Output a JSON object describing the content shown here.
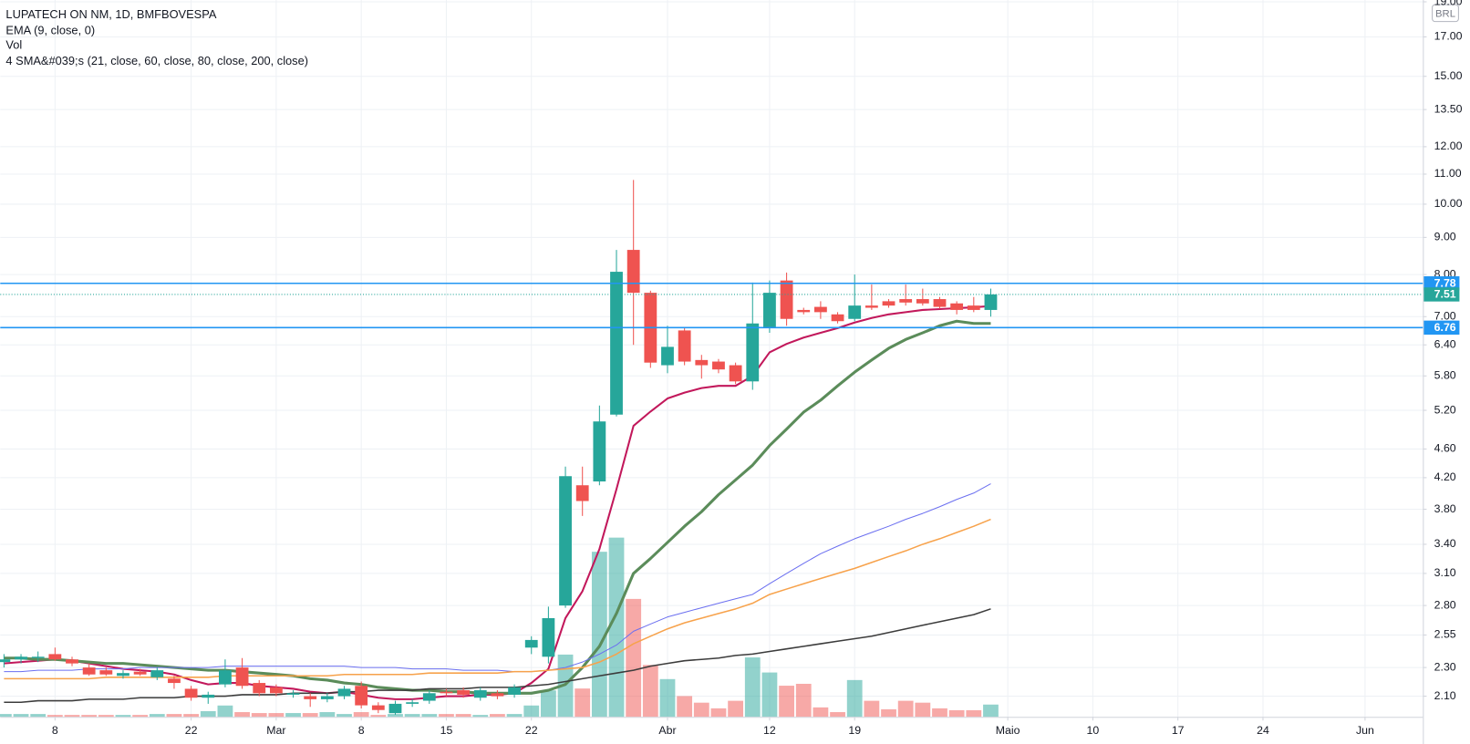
{
  "chart_data": {
    "type": "candlestick",
    "title": "LUPATECH ON NM, 1D, BMFBOVESPA",
    "indicators_legend": [
      "EMA (9, close, 0)",
      "Vol",
      "4 SMA&#039;s (21, close, 60, close, 80, close, 200, close)"
    ],
    "currency": "BRL",
    "log_scale": true,
    "grid": true,
    "up_color": "#26a69a",
    "down_color": "#ef5350",
    "ylim": [
      1.967,
      19.11
    ],
    "yticks": [
      {
        "value": 19,
        "label": "19.00"
      },
      {
        "value": 17,
        "label": "17.00"
      },
      {
        "value": 15,
        "label": "15.00"
      },
      {
        "value": 13.5,
        "label": "13.50"
      },
      {
        "value": 12,
        "label": "12.00"
      },
      {
        "value": 11,
        "label": "11.00"
      },
      {
        "value": 10,
        "label": "10.00"
      },
      {
        "value": 9,
        "label": "9.00"
      },
      {
        "value": 8,
        "label": "8.00"
      },
      {
        "value": 7,
        "label": "7.00"
      },
      {
        "value": 6.4,
        "label": "6.40"
      },
      {
        "value": 5.8,
        "label": "5.80"
      },
      {
        "value": 5.2,
        "label": "5.20"
      },
      {
        "value": 4.6,
        "label": "4.60"
      },
      {
        "value": 4.2,
        "label": "4.20"
      },
      {
        "value": 3.8,
        "label": "3.80"
      },
      {
        "value": 3.4,
        "label": "3.40"
      },
      {
        "value": 3.1,
        "label": "3.10"
      },
      {
        "value": 2.8,
        "label": "2.80"
      },
      {
        "value": 2.55,
        "label": "2.55"
      },
      {
        "value": 2.3,
        "label": "2.30"
      },
      {
        "value": 2.1,
        "label": "2.10"
      }
    ],
    "xlim": [
      -0.22,
      83.4
    ],
    "xticks": [
      {
        "value": 3,
        "label": "8"
      },
      {
        "value": 11,
        "label": "22"
      },
      {
        "value": 16,
        "label": "Mar"
      },
      {
        "value": 21,
        "label": "8"
      },
      {
        "value": 26,
        "label": "15"
      },
      {
        "value": 31,
        "label": "22"
      },
      {
        "value": 39,
        "label": "Abr"
      },
      {
        "value": 45,
        "label": "12"
      },
      {
        "value": 50,
        "label": "19"
      },
      {
        "value": 59,
        "label": "Maio"
      },
      {
        "value": 64,
        "label": "10"
      },
      {
        "value": 69,
        "label": "17"
      },
      {
        "value": 74,
        "label": "24"
      },
      {
        "value": 80,
        "label": "Jun"
      }
    ],
    "open": [
      2.34,
      2.36,
      2.37,
      2.4,
      2.36,
      2.3,
      2.28,
      2.24,
      2.27,
      2.23,
      2.22,
      2.15,
      2.09,
      2.18,
      2.3,
      2.19,
      2.16,
      2.11,
      2.1,
      2.08,
      2.1,
      2.17,
      2.04,
      1.99,
      2.05,
      2.07,
      2.13,
      2.14,
      2.09,
      2.12,
      2.11,
      2.45,
      2.38,
      2.8,
      4.1,
      4.15,
      5.13,
      8.65,
      7.55,
      6.0,
      6.7,
      6.1,
      6.07,
      6.0,
      5.7,
      6.75,
      7.85,
      7.15,
      7.22,
      7.05,
      6.95,
      7.25,
      7.35,
      7.4,
      7.4,
      7.4,
      7.3,
      7.25,
      7.15
    ],
    "high": [
      2.4,
      2.4,
      2.42,
      2.45,
      2.38,
      2.33,
      2.3,
      2.28,
      2.29,
      2.3,
      2.24,
      2.17,
      2.13,
      2.36,
      2.37,
      2.21,
      2.18,
      2.14,
      2.12,
      2.12,
      2.17,
      2.2,
      2.06,
      2.07,
      2.08,
      2.14,
      2.15,
      2.16,
      2.16,
      2.14,
      2.18,
      2.54,
      2.79,
      4.35,
      4.35,
      5.28,
      8.65,
      10.8,
      7.6,
      6.8,
      6.75,
      6.2,
      6.12,
      6.05,
      7.8,
      7.85,
      8.05,
      7.2,
      7.35,
      7.1,
      8.0,
      7.75,
      7.4,
      7.75,
      7.65,
      7.45,
      7.35,
      7.45,
      7.65
    ],
    "low": [
      2.3,
      2.33,
      2.34,
      2.35,
      2.31,
      2.24,
      2.24,
      2.22,
      2.24,
      2.21,
      2.15,
      2.07,
      2.05,
      2.16,
      2.15,
      2.1,
      2.1,
      2.09,
      2.03,
      2.06,
      2.08,
      2.02,
      1.99,
      1.98,
      2.03,
      2.05,
      2.1,
      2.09,
      2.07,
      2.08,
      2.09,
      2.4,
      2.33,
      2.78,
      3.72,
      4.1,
      5.1,
      6.4,
      5.95,
      5.85,
      6.0,
      5.75,
      5.85,
      5.65,
      5.55,
      6.65,
      6.8,
      7.05,
      6.95,
      6.85,
      6.9,
      7.15,
      7.2,
      7.25,
      7.25,
      7.18,
      7.05,
      7.1,
      7.0
    ],
    "close": [
      2.36,
      2.38,
      2.38,
      2.36,
      2.33,
      2.25,
      2.25,
      2.26,
      2.25,
      2.28,
      2.19,
      2.09,
      2.11,
      2.28,
      2.17,
      2.12,
      2.12,
      2.12,
      2.08,
      2.1,
      2.15,
      2.04,
      2.01,
      2.05,
      2.06,
      2.12,
      2.12,
      2.11,
      2.14,
      2.1,
      2.16,
      2.51,
      2.69,
      4.22,
      3.9,
      5.02,
      8.07,
      7.55,
      6.05,
      6.36,
      6.07,
      6.0,
      5.92,
      5.7,
      6.85,
      7.55,
      6.95,
      7.1,
      7.1,
      6.9,
      7.25,
      7.2,
      7.25,
      7.32,
      7.3,
      7.22,
      7.15,
      7.15,
      7.51
    ],
    "volume": [
      3,
      3,
      3,
      2,
      2,
      2,
      2,
      2,
      2,
      3,
      3,
      3,
      6,
      12,
      5,
      4,
      4,
      4,
      4,
      5,
      3,
      5,
      2,
      3,
      3,
      3,
      3,
      3,
      2,
      3,
      3,
      12,
      28,
      66,
      30,
      175,
      190,
      125,
      55,
      40,
      22,
      15,
      9,
      17,
      63,
      47,
      33,
      35,
      10,
      5,
      39,
      17,
      8,
      17,
      15,
      9,
      7,
      7,
      13
    ],
    "series": [
      {
        "color": "#c2185b",
        "width": 2,
        "values": [
          2.33,
          2.34,
          2.35,
          2.36,
          2.35,
          2.33,
          2.31,
          2.29,
          2.28,
          2.27,
          2.25,
          2.21,
          2.18,
          2.19,
          2.19,
          2.17,
          2.16,
          2.15,
          2.13,
          2.12,
          2.13,
          2.11,
          2.09,
          2.08,
          2.08,
          2.09,
          2.1,
          2.1,
          2.11,
          2.11,
          2.12,
          2.19,
          2.29,
          2.69,
          2.93,
          3.35,
          4.05,
          4.95,
          5.18,
          5.4,
          5.5,
          5.58,
          5.62,
          5.62,
          5.8,
          6.25,
          6.42,
          6.55,
          6.65,
          6.75,
          6.87,
          6.97,
          7.05,
          7.1,
          7.15,
          7.17,
          7.19,
          7.21,
          7.24
        ]
      },
      {
        "color": "#5b8c5a",
        "width": 3,
        "values": [
          2.37,
          2.37,
          2.36,
          2.36,
          2.35,
          2.34,
          2.33,
          2.33,
          2.32,
          2.31,
          2.3,
          2.29,
          2.28,
          2.28,
          2.27,
          2.26,
          2.25,
          2.24,
          2.22,
          2.21,
          2.19,
          2.18,
          2.16,
          2.15,
          2.14,
          2.14,
          2.13,
          2.13,
          2.12,
          2.12,
          2.12,
          2.12,
          2.14,
          2.18,
          2.3,
          2.46,
          2.73,
          3.1,
          3.25,
          3.42,
          3.6,
          3.77,
          3.98,
          4.17,
          4.37,
          4.65,
          4.9,
          5.17,
          5.37,
          5.62,
          5.87,
          6.1,
          6.33,
          6.51,
          6.65,
          6.8,
          6.9,
          6.85,
          6.85
        ]
      },
      {
        "color": "#6b6ff0",
        "width": 1,
        "values": [
          2.27,
          2.27,
          2.28,
          2.28,
          2.28,
          2.29,
          2.29,
          2.29,
          2.3,
          2.3,
          2.3,
          2.3,
          2.3,
          2.31,
          2.31,
          2.31,
          2.31,
          2.31,
          2.31,
          2.31,
          2.31,
          2.3,
          2.3,
          2.3,
          2.29,
          2.29,
          2.29,
          2.28,
          2.28,
          2.28,
          2.27,
          2.27,
          2.28,
          2.3,
          2.34,
          2.4,
          2.47,
          2.58,
          2.64,
          2.7,
          2.74,
          2.78,
          2.82,
          2.86,
          2.9,
          3.0,
          3.1,
          3.2,
          3.3,
          3.38,
          3.46,
          3.53,
          3.6,
          3.68,
          3.75,
          3.83,
          3.92,
          4.0,
          4.12
        ]
      },
      {
        "color": "#f7a24b",
        "width": 1.5,
        "values": [
          2.22,
          2.22,
          2.22,
          2.22,
          2.22,
          2.22,
          2.23,
          2.23,
          2.23,
          2.23,
          2.23,
          2.23,
          2.23,
          2.24,
          2.24,
          2.24,
          2.24,
          2.24,
          2.24,
          2.24,
          2.25,
          2.25,
          2.25,
          2.25,
          2.25,
          2.26,
          2.26,
          2.26,
          2.26,
          2.26,
          2.27,
          2.27,
          2.28,
          2.29,
          2.3,
          2.34,
          2.4,
          2.48,
          2.54,
          2.6,
          2.65,
          2.69,
          2.73,
          2.77,
          2.82,
          2.9,
          2.95,
          3.0,
          3.05,
          3.1,
          3.15,
          3.21,
          3.27,
          3.33,
          3.4,
          3.46,
          3.53,
          3.6,
          3.68
        ]
      },
      {
        "color": "#3c3c3c",
        "width": 1.5,
        "values": [
          2.06,
          2.06,
          2.07,
          2.07,
          2.07,
          2.08,
          2.08,
          2.08,
          2.09,
          2.09,
          2.09,
          2.1,
          2.1,
          2.1,
          2.11,
          2.11,
          2.11,
          2.12,
          2.12,
          2.12,
          2.13,
          2.13,
          2.14,
          2.14,
          2.14,
          2.15,
          2.15,
          2.15,
          2.16,
          2.16,
          2.16,
          2.17,
          2.18,
          2.2,
          2.22,
          2.24,
          2.26,
          2.28,
          2.31,
          2.33,
          2.35,
          2.36,
          2.37,
          2.39,
          2.4,
          2.42,
          2.44,
          2.46,
          2.48,
          2.5,
          2.52,
          2.54,
          2.57,
          2.6,
          2.63,
          2.66,
          2.69,
          2.72,
          2.77
        ]
      }
    ],
    "price_lines": [
      {
        "value": 7.78,
        "color": "#2196f3",
        "style": "solid"
      },
      {
        "value": 7.51,
        "color": "#26a69a",
        "style": "dotted"
      },
      {
        "value": 6.76,
        "color": "#2196f3",
        "style": "solid"
      }
    ]
  }
}
